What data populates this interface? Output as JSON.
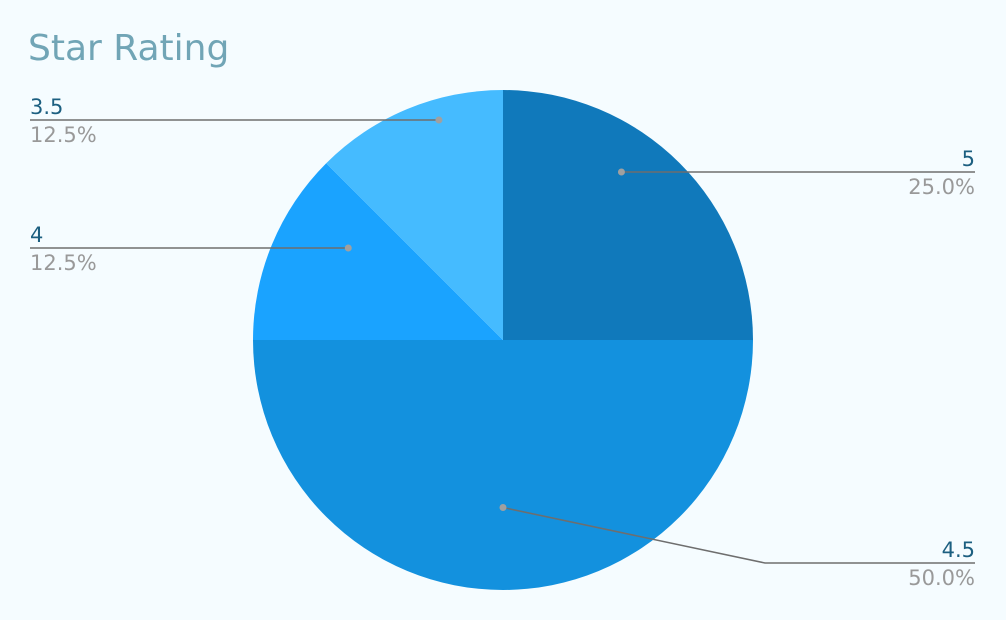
{
  "chart_data": {
    "type": "pie",
    "title": "Star Rating",
    "slices": [
      {
        "label": "5",
        "value": 25.0,
        "percent_label": "25.0%",
        "color": "#1079bb"
      },
      {
        "label": "4.5",
        "value": 50.0,
        "percent_label": "50.0%",
        "color": "#1391de"
      },
      {
        "label": "4",
        "value": 12.5,
        "percent_label": "12.5%",
        "color": "#1aa3ff"
      },
      {
        "label": "3.5",
        "value": 12.5,
        "percent_label": "12.5%",
        "color": "#45bbff"
      }
    ],
    "start_angle": "12 o'clock",
    "direction": "clockwise",
    "legend": "none"
  }
}
